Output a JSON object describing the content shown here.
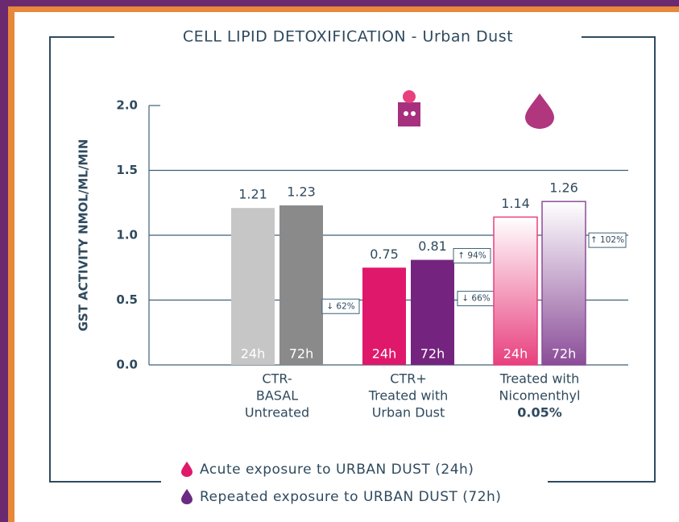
{
  "chart_data": {
    "type": "bar",
    "title": "CELL LIPID DETOXIFICATION - Urban Dust",
    "ylabel": "GST  ACTIVITY  NMOL/ML/MIN",
    "categories": [
      [
        "CTR-",
        "BASAL",
        "Untreated"
      ],
      [
        "CTR+",
        "Treated with",
        "Urban Dust"
      ],
      [
        "Treated with",
        "Nicomenthyl",
        "0.05%"
      ]
    ],
    "gradient": [
      false,
      false,
      true
    ],
    "series": [
      {
        "name": "Acute exposure to URBAN DUST (24h)",
        "color": "#e0186c",
        "bar_label": "24h",
        "colors": [
          "#c6c6c6",
          "#e0186c",
          "#e8407e"
        ],
        "values": [
          1.21,
          0.75,
          1.14
        ],
        "annotations": [
          null,
          "↓ 62%",
          "↑ 94%"
        ]
      },
      {
        "name": "Repeated exposure to URBAN DUST (72h)",
        "color": "#6a2a82",
        "bar_label": "72h",
        "colors": [
          "#8a8a8a",
          "#74247e",
          "#8a4d98"
        ],
        "values": [
          1.23,
          0.81,
          1.26
        ],
        "annotations": [
          null,
          "↓ 66%",
          "↑ 102%"
        ]
      }
    ],
    "ylim": [
      0,
      2.0
    ],
    "yticks": [
      {
        "value": 0,
        "label": "0.0"
      },
      {
        "value": 0.5,
        "label": "0.5"
      },
      {
        "value": 1.0,
        "label": "1.0"
      },
      {
        "value": 1.5,
        "label": "1.5"
      },
      {
        "value": 2.0,
        "label": "2.0"
      }
    ],
    "grid": true
  }
}
